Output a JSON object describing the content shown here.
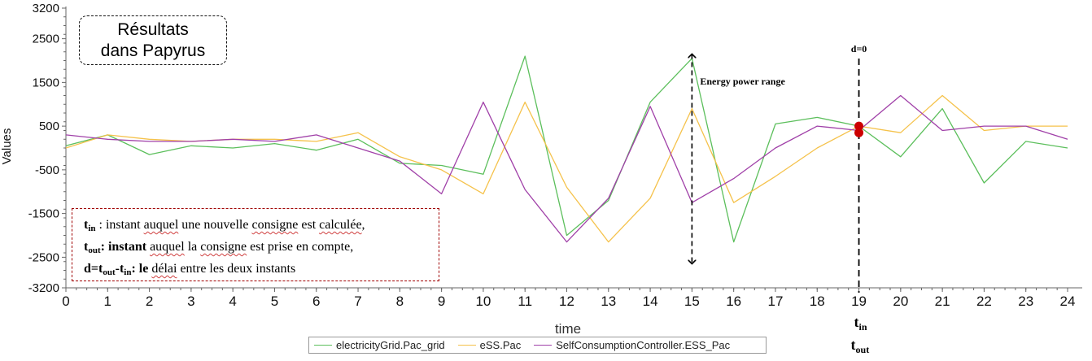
{
  "chart_data": {
    "type": "line",
    "xlabel": "time",
    "ylabel": "Values",
    "xlim": [
      0,
      24
    ],
    "ylim": [
      -3200,
      3200
    ],
    "x": [
      0,
      1,
      2,
      3,
      4,
      5,
      6,
      7,
      8,
      9,
      10,
      11,
      12,
      13,
      14,
      15,
      16,
      17,
      18,
      19,
      20,
      21,
      22,
      23,
      24
    ],
    "x_ticks": [
      "0",
      "1",
      "2",
      "3",
      "4",
      "5",
      "6",
      "7",
      "8",
      "9",
      "10",
      "11",
      "12",
      "13",
      "14",
      "15",
      "16",
      "17",
      "18",
      "19",
      "20",
      "21",
      "22",
      "23",
      "24"
    ],
    "y_ticks": [
      "3200",
      "2500",
      "1500",
      "500",
      "-500",
      "-1500",
      "-2500",
      "-3200"
    ],
    "y_tick_values": [
      3200,
      2500,
      1500,
      500,
      -500,
      -1500,
      -2500,
      -3200
    ],
    "grid": false,
    "legend": "bottom",
    "series": [
      {
        "name": "electricityGrid.Pac_grid",
        "color": "#5cbf5c",
        "values": [
          50,
          300,
          -150,
          50,
          0,
          100,
          -50,
          200,
          -350,
          -400,
          -600,
          2100,
          -2000,
          -1200,
          1050,
          2050,
          -2150,
          550,
          700,
          500,
          -200,
          900,
          -800,
          150,
          0
        ]
      },
      {
        "name": "eSS.Pac",
        "color": "#f5c24b",
        "values": [
          0,
          300,
          200,
          150,
          200,
          200,
          150,
          350,
          -200,
          -500,
          -1050,
          1050,
          -900,
          -2150,
          -1150,
          900,
          -1250,
          -650,
          0,
          500,
          350,
          1200,
          400,
          500,
          500
        ]
      },
      {
        "name": "SelfConsumptionController.ESS_Pac",
        "color": "#a040a8",
        "values": [
          300,
          200,
          150,
          150,
          200,
          150,
          300,
          0,
          -300,
          -1050,
          1050,
          -950,
          -2150,
          -1150,
          950,
          -1250,
          -700,
          0,
          500,
          400,
          1200,
          400,
          500,
          500,
          200
        ]
      }
    ],
    "annotations": {
      "energy_label": "Energy power range",
      "delay_label": "d=0",
      "tin_label": "t",
      "tin_sub": "in",
      "tout_label": "t",
      "tout_sub": "out",
      "arrow_x": 15,
      "arrow_top": 2150,
      "arrow_bottom": -2650,
      "delay_x": 19,
      "marker_values": [
        500,
        350
      ]
    }
  },
  "papyrus_box": {
    "line1": "Résultats",
    "line2": "dans Papyrus"
  },
  "notes": {
    "l1_t": "t",
    "l1_sub": "in",
    "l1_rest_a": " : instant ",
    "l1_auquel": "auquel",
    "l1_rest_b": " une nouvelle ",
    "l1_consigne": "consigne",
    "l1_rest_c": " est ",
    "l1_calculee": "calculée",
    "l1_end": ",",
    "l2_t": "t",
    "l2_sub": "out",
    "l2_colon": ": instant ",
    "l2_auquel": "auquel",
    "l2_rest_a": " la ",
    "l2_consigne": "consigne",
    "l2_rest_b": " est prise en compte,",
    "l3_d": "d=t",
    "l3_sub1": "out",
    "l3_minus": "-t",
    "l3_sub2": "in",
    "l3_colon": ": le ",
    "l3_delai": "délai",
    "l3_rest": " entre les deux instants"
  },
  "colors": {
    "axis": "#666666",
    "marker": "#cc0000",
    "notes_border": "#a00000"
  }
}
